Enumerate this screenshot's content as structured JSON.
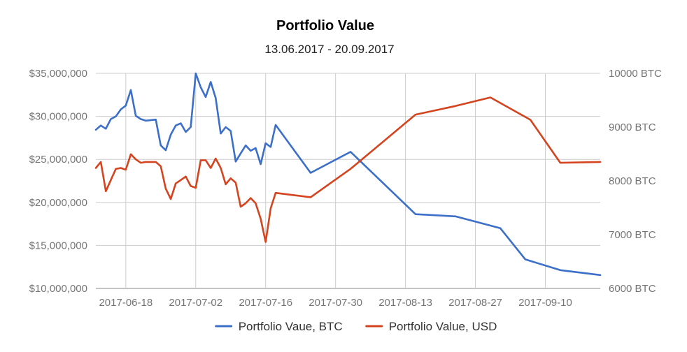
{
  "chart_data": {
    "type": "line",
    "title": "Portfolio Value",
    "subtitle": "13.06.2017 - 20.09.2017",
    "x_ticks": [
      "2017-06-18",
      "2017-07-02",
      "2017-07-16",
      "2017-07-30",
      "2017-08-13",
      "2017-08-27",
      "2017-09-10"
    ],
    "x_range": [
      "2017-06-12",
      "2017-09-21"
    ],
    "left_axis": {
      "ticks": [
        "$10,000,000",
        "$15,000,000",
        "$20,000,000",
        "$25,000,000",
        "$30,000,000",
        "$35,000,000"
      ],
      "range": [
        10000000,
        35000000
      ]
    },
    "right_axis": {
      "ticks": [
        "6000 BTC",
        "7000 BTC",
        "8000 BTC",
        "9000 BTC",
        "10000 BTC"
      ],
      "range": [
        6000,
        10000
      ]
    },
    "grid": true,
    "legend_position": "bottom",
    "series": [
      {
        "name": "Portfolio Vaue, BTC",
        "axis": "right",
        "color": "#3c6fc8",
        "points": [
          [
            "2017-06-12",
            8950
          ],
          [
            "2017-06-13",
            9030
          ],
          [
            "2017-06-14",
            8970
          ],
          [
            "2017-06-15",
            9150
          ],
          [
            "2017-06-16",
            9200
          ],
          [
            "2017-06-17",
            9330
          ],
          [
            "2017-06-18",
            9400
          ],
          [
            "2017-06-19",
            9690
          ],
          [
            "2017-06-20",
            9210
          ],
          [
            "2017-06-21",
            9150
          ],
          [
            "2017-06-22",
            9120
          ],
          [
            "2017-06-24",
            9140
          ],
          [
            "2017-06-25",
            8660
          ],
          [
            "2017-06-26",
            8570
          ],
          [
            "2017-06-27",
            8860
          ],
          [
            "2017-06-28",
            9030
          ],
          [
            "2017-06-29",
            9070
          ],
          [
            "2017-06-30",
            8910
          ],
          [
            "2017-07-01",
            9000
          ],
          [
            "2017-07-02",
            10000
          ],
          [
            "2017-07-03",
            9740
          ],
          [
            "2017-07-04",
            9560
          ],
          [
            "2017-07-05",
            9840
          ],
          [
            "2017-07-06",
            9540
          ],
          [
            "2017-07-07",
            8880
          ],
          [
            "2017-07-08",
            9000
          ],
          [
            "2017-07-09",
            8930
          ],
          [
            "2017-07-10",
            8360
          ],
          [
            "2017-07-11",
            8510
          ],
          [
            "2017-07-12",
            8660
          ],
          [
            "2017-07-13",
            8560
          ],
          [
            "2017-07-14",
            8610
          ],
          [
            "2017-07-15",
            8310
          ],
          [
            "2017-07-16",
            8700
          ],
          [
            "2017-07-17",
            8630
          ],
          [
            "2017-07-18",
            9040
          ],
          [
            "2017-07-25",
            8150
          ],
          [
            "2017-08-02",
            8540
          ],
          [
            "2017-08-15",
            7380
          ],
          [
            "2017-08-23",
            7340
          ],
          [
            "2017-09-01",
            7120
          ],
          [
            "2017-09-06",
            6540
          ],
          [
            "2017-09-13",
            6340
          ],
          [
            "2017-09-21",
            6250
          ]
        ]
      },
      {
        "name": "Portfolio Value, USD",
        "axis": "left",
        "color": "#d3441f",
        "points": [
          [
            "2017-06-12",
            24000000
          ],
          [
            "2017-06-13",
            24700000
          ],
          [
            "2017-06-14",
            21300000
          ],
          [
            "2017-06-15",
            22600000
          ],
          [
            "2017-06-16",
            23900000
          ],
          [
            "2017-06-17",
            24000000
          ],
          [
            "2017-06-18",
            23800000
          ],
          [
            "2017-06-19",
            25600000
          ],
          [
            "2017-06-20",
            25000000
          ],
          [
            "2017-06-21",
            24600000
          ],
          [
            "2017-06-22",
            24700000
          ],
          [
            "2017-06-24",
            24700000
          ],
          [
            "2017-06-25",
            24200000
          ],
          [
            "2017-06-26",
            21600000
          ],
          [
            "2017-06-27",
            20400000
          ],
          [
            "2017-06-28",
            22200000
          ],
          [
            "2017-06-29",
            22600000
          ],
          [
            "2017-06-30",
            23000000
          ],
          [
            "2017-07-01",
            21900000
          ],
          [
            "2017-07-02",
            21700000
          ],
          [
            "2017-07-03",
            24900000
          ],
          [
            "2017-07-04",
            24900000
          ],
          [
            "2017-07-05",
            24000000
          ],
          [
            "2017-07-06",
            25100000
          ],
          [
            "2017-07-07",
            24000000
          ],
          [
            "2017-07-08",
            22100000
          ],
          [
            "2017-07-09",
            22800000
          ],
          [
            "2017-07-10",
            22300000
          ],
          [
            "2017-07-11",
            19500000
          ],
          [
            "2017-07-12",
            19900000
          ],
          [
            "2017-07-13",
            20500000
          ],
          [
            "2017-07-14",
            19900000
          ],
          [
            "2017-07-15",
            18100000
          ],
          [
            "2017-07-16",
            15400000
          ],
          [
            "2017-07-17",
            19300000
          ],
          [
            "2017-07-18",
            21100000
          ],
          [
            "2017-07-25",
            20600000
          ],
          [
            "2017-08-02",
            23900000
          ],
          [
            "2017-08-15",
            30200000
          ],
          [
            "2017-08-23",
            31200000
          ],
          [
            "2017-08-30",
            32200000
          ],
          [
            "2017-09-07",
            29600000
          ],
          [
            "2017-09-13",
            24600000
          ],
          [
            "2017-09-21",
            24700000
          ]
        ]
      }
    ]
  }
}
